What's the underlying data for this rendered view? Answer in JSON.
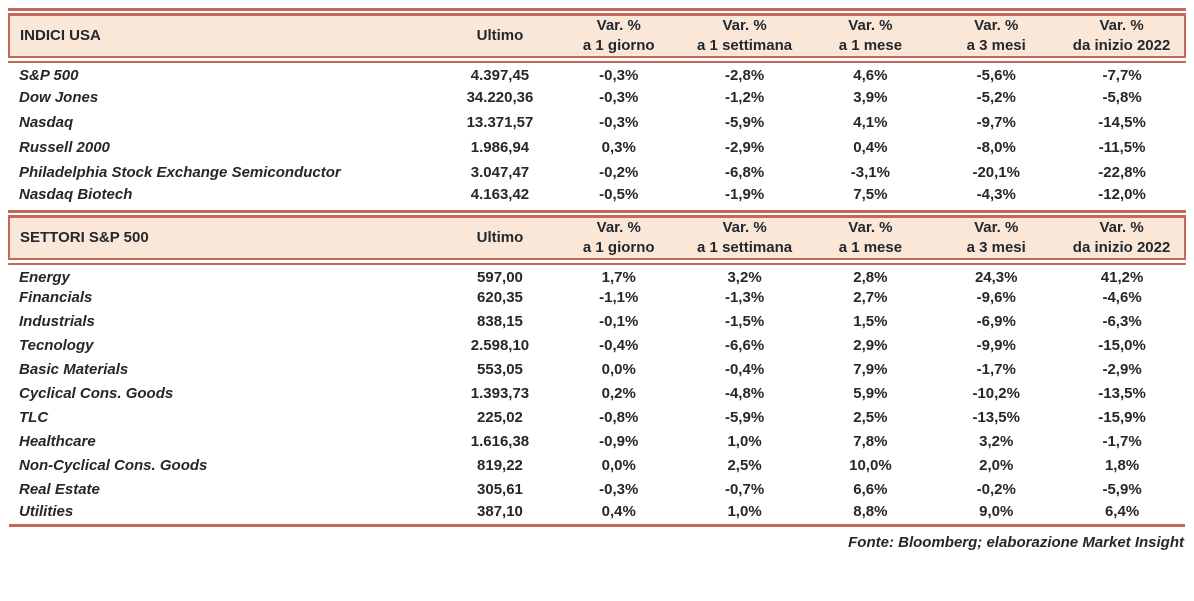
{
  "columns": {
    "ultimo": "Ultimo",
    "var": [
      {
        "line1": "Var. %",
        "line2": "a 1 giorno"
      },
      {
        "line1": "Var. %",
        "line2": "a 1 settimana"
      },
      {
        "line1": "Var. %",
        "line2": "a 1 mese"
      },
      {
        "line1": "Var. %",
        "line2": "a 3 mesi"
      },
      {
        "line1": "Var. %",
        "line2": "da inizio 2022"
      }
    ]
  },
  "tables": [
    {
      "title": "INDICI USA",
      "rows": [
        {
          "label": "S&P 500",
          "ultimo": "4.397,45",
          "d1": "-0,3%",
          "w1": "-2,8%",
          "m1": "4,6%",
          "m3": "-5,6%",
          "ytd": "-7,7%"
        },
        {
          "label": "Dow Jones",
          "ultimo": "34.220,36",
          "d1": "-0,3%",
          "w1": "-1,2%",
          "m1": "3,9%",
          "m3": "-5,2%",
          "ytd": "-5,8%"
        },
        {
          "label": "Nasdaq",
          "ultimo": "13.371,57",
          "d1": "-0,3%",
          "w1": "-5,9%",
          "m1": "4,1%",
          "m3": "-9,7%",
          "ytd": "-14,5%"
        },
        {
          "label": "Russell 2000",
          "ultimo": "1.986,94",
          "d1": "0,3%",
          "w1": "-2,9%",
          "m1": "0,4%",
          "m3": "-8,0%",
          "ytd": "-11,5%"
        },
        {
          "label": "Philadelphia Stock Exchange Semiconductor",
          "ultimo": "3.047,47",
          "d1": "-0,2%",
          "w1": "-6,8%",
          "m1": "-3,1%",
          "m3": "-20,1%",
          "ytd": "-22,8%"
        },
        {
          "label": "Nasdaq Biotech",
          "ultimo": "4.163,42",
          "d1": "-0,5%",
          "w1": "-1,9%",
          "m1": "7,5%",
          "m3": "-4,3%",
          "ytd": "-12,0%"
        }
      ]
    },
    {
      "title": "SETTORI S&P 500",
      "rows": [
        {
          "label": "Energy",
          "ultimo": "597,00",
          "d1": "1,7%",
          "w1": "3,2%",
          "m1": "2,8%",
          "m3": "24,3%",
          "ytd": "41,2%"
        },
        {
          "label": "Financials",
          "ultimo": "620,35",
          "d1": "-1,1%",
          "w1": "-1,3%",
          "m1": "2,7%",
          "m3": "-9,6%",
          "ytd": "-4,6%"
        },
        {
          "label": "Industrials",
          "ultimo": "838,15",
          "d1": "-0,1%",
          "w1": "-1,5%",
          "m1": "1,5%",
          "m3": "-6,9%",
          "ytd": "-6,3%"
        },
        {
          "label": "Tecnology",
          "ultimo": "2.598,10",
          "d1": "-0,4%",
          "w1": "-6,6%",
          "m1": "2,9%",
          "m3": "-9,9%",
          "ytd": "-15,0%"
        },
        {
          "label": "Basic Materials",
          "ultimo": "553,05",
          "d1": "0,0%",
          "w1": "-0,4%",
          "m1": "7,9%",
          "m3": "-1,7%",
          "ytd": "-2,9%"
        },
        {
          "label": "Cyclical Cons. Goods",
          "ultimo": "1.393,73",
          "d1": "0,2%",
          "w1": "-4,8%",
          "m1": "5,9%",
          "m3": "-10,2%",
          "ytd": "-13,5%"
        },
        {
          "label": "TLC",
          "ultimo": "225,02",
          "d1": "-0,8%",
          "w1": "-5,9%",
          "m1": "2,5%",
          "m3": "-13,5%",
          "ytd": "-15,9%"
        },
        {
          "label": "Healthcare",
          "ultimo": "1.616,38",
          "d1": "-0,9%",
          "w1": "1,0%",
          "m1": "7,8%",
          "m3": "3,2%",
          "ytd": "-1,7%"
        },
        {
          "label": "Non-Cyclical Cons. Goods",
          "ultimo": "819,22",
          "d1": "0,0%",
          "w1": "2,5%",
          "m1": "10,0%",
          "m3": "2,0%",
          "ytd": "1,8%"
        },
        {
          "label": "Real Estate",
          "ultimo": "305,61",
          "d1": "-0,3%",
          "w1": "-0,7%",
          "m1": "6,6%",
          "m3": "-0,2%",
          "ytd": "-5,9%"
        },
        {
          "label": "Utilities",
          "ultimo": "387,10",
          "d1": "0,4%",
          "w1": "1,0%",
          "m1": "8,8%",
          "m3": "9,0%",
          "ytd": "6,4%"
        }
      ]
    }
  ],
  "footer": "Fonte: Bloomberg; elaborazione Market Insight",
  "colors": {
    "accent_border": "#c4695a",
    "header_bg": "#fbe7d7",
    "text": "#27272a"
  }
}
